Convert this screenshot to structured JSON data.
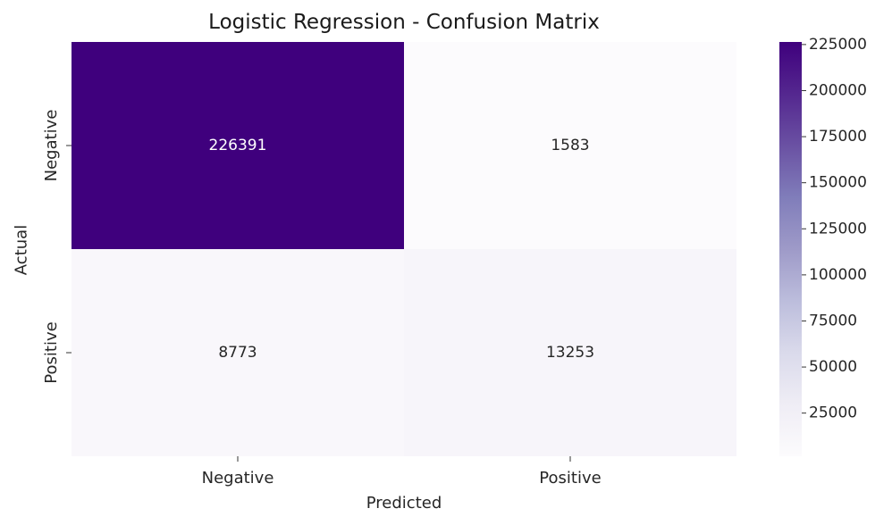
{
  "chart_data": {
    "type": "heatmap",
    "title": "Logistic Regression - Confusion Matrix",
    "xlabel": "Predicted",
    "ylabel": "Actual",
    "x_categories": [
      "Negative",
      "Positive"
    ],
    "y_categories": [
      "Negative",
      "Positive"
    ],
    "values": [
      [
        226391,
        1583
      ],
      [
        8773,
        13253
      ]
    ],
    "colormap": "Purples",
    "colorbar": {
      "min": 1583,
      "max": 226391,
      "ticks": [
        25000,
        50000,
        75000,
        100000,
        125000,
        150000,
        175000,
        200000,
        225000
      ]
    },
    "colors": {
      "low": "#fcfbfd",
      "high": "#3f007d",
      "annot_dark": "#262626",
      "annot_light": "#ffffff"
    }
  }
}
